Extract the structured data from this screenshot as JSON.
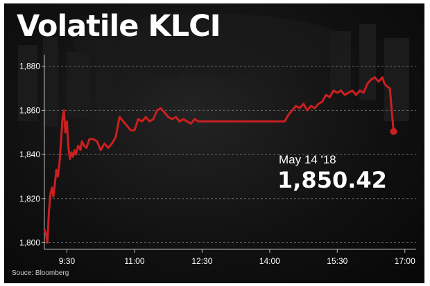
{
  "title": "Volatile KLCI",
  "source": "Souce: Bloomberg",
  "annotation": {
    "date": "May 14 '18",
    "value": "1,850.42"
  },
  "colors": {
    "line": "#cc1f1f",
    "background": "#111111",
    "text": "#ffffff",
    "grid": "#6a6a6a"
  },
  "chart_data": {
    "type": "line",
    "title": "Volatile KLCI",
    "xlabel": "",
    "ylabel": "",
    "x_ticks": [
      "9:30",
      "11:00",
      "12:30",
      "14:00",
      "15:30",
      "17:00"
    ],
    "y_ticks": [
      1800,
      1820,
      1840,
      1860,
      1880
    ],
    "y_tick_labels": [
      "1,800",
      "1,820",
      "1,840",
      "1,860",
      "1,880"
    ],
    "ylim": [
      1797,
      1884
    ],
    "xlim": [
      "9:00",
      "17:15"
    ],
    "grid": true,
    "series": [
      {
        "name": "",
        "points": [
          [
            "9:00",
            1806
          ],
          [
            "9:02",
            1804
          ],
          [
            "9:04",
            1800
          ],
          [
            "9:06",
            1814
          ],
          [
            "9:08",
            1822
          ],
          [
            "9:10",
            1825
          ],
          [
            "9:12",
            1821
          ],
          [
            "9:14",
            1827
          ],
          [
            "9:16",
            1833
          ],
          [
            "9:18",
            1830
          ],
          [
            "9:20",
            1836
          ],
          [
            "9:22",
            1845
          ],
          [
            "9:24",
            1856
          ],
          [
            "9:26",
            1860
          ],
          [
            "9:28",
            1850
          ],
          [
            "9:30",
            1855
          ],
          [
            "9:32",
            1843
          ],
          [
            "9:34",
            1838
          ],
          [
            "9:36",
            1841
          ],
          [
            "9:38",
            1839
          ],
          [
            "9:40",
            1842
          ],
          [
            "9:42",
            1840
          ],
          [
            "9:45",
            1844
          ],
          [
            "9:48",
            1842
          ],
          [
            "9:50",
            1846
          ],
          [
            "9:53",
            1844
          ],
          [
            "9:56",
            1843
          ],
          [
            "10:00",
            1847
          ],
          [
            "10:05",
            1847
          ],
          [
            "10:10",
            1846
          ],
          [
            "10:15",
            1842
          ],
          [
            "10:20",
            1845
          ],
          [
            "10:25",
            1843
          ],
          [
            "10:30",
            1845
          ],
          [
            "10:35",
            1848
          ],
          [
            "10:40",
            1857
          ],
          [
            "10:45",
            1855
          ],
          [
            "10:50",
            1853
          ],
          [
            "10:55",
            1851
          ],
          [
            "11:00",
            1851
          ],
          [
            "11:05",
            1856
          ],
          [
            "11:10",
            1855
          ],
          [
            "11:15",
            1857
          ],
          [
            "11:20",
            1855
          ],
          [
            "11:25",
            1856
          ],
          [
            "11:30",
            1860
          ],
          [
            "11:35",
            1861
          ],
          [
            "11:40",
            1859
          ],
          [
            "11:45",
            1857
          ],
          [
            "11:50",
            1856
          ],
          [
            "11:55",
            1857
          ],
          [
            "12:00",
            1855
          ],
          [
            "12:05",
            1856
          ],
          [
            "12:10",
            1855
          ],
          [
            "12:15",
            1854
          ],
          [
            "12:20",
            1856
          ],
          [
            "12:25",
            1855
          ],
          [
            "13:00",
            1855
          ],
          [
            "13:30",
            1855
          ],
          [
            "14:00",
            1855
          ],
          [
            "14:20",
            1855
          ],
          [
            "14:25",
            1858
          ],
          [
            "14:30",
            1860
          ],
          [
            "14:35",
            1862
          ],
          [
            "14:40",
            1861
          ],
          [
            "14:45",
            1863
          ],
          [
            "14:50",
            1860
          ],
          [
            "14:55",
            1862
          ],
          [
            "15:00",
            1861
          ],
          [
            "15:05",
            1863
          ],
          [
            "15:10",
            1864
          ],
          [
            "15:15",
            1867
          ],
          [
            "15:20",
            1866
          ],
          [
            "15:25",
            1869
          ],
          [
            "15:30",
            1868
          ],
          [
            "15:35",
            1869
          ],
          [
            "15:40",
            1867
          ],
          [
            "15:45",
            1868
          ],
          [
            "15:50",
            1869
          ],
          [
            "15:55",
            1867
          ],
          [
            "16:00",
            1869
          ],
          [
            "16:05",
            1868
          ],
          [
            "16:10",
            1872
          ],
          [
            "16:15",
            1874
          ],
          [
            "16:20",
            1875
          ],
          [
            "16:25",
            1873
          ],
          [
            "16:30",
            1875
          ],
          [
            "16:33",
            1872
          ],
          [
            "16:36",
            1871
          ],
          [
            "16:40",
            1870
          ],
          [
            "16:45",
            1850.42
          ]
        ]
      }
    ]
  }
}
